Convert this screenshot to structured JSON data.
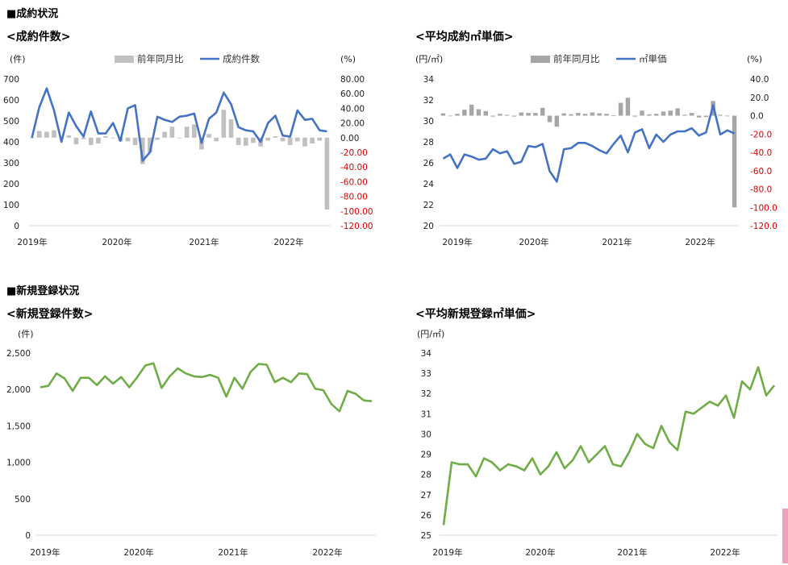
{
  "sections": {
    "contracts": "■成約状況",
    "registrations": "■新規登録状況"
  },
  "chart_data": [
    {
      "type": "bar+line",
      "title": "<成約件数>",
      "y_left_unit": "(件)",
      "y_right_unit": "(%)",
      "y_left_ticks": [
        "700",
        "600",
        "500",
        "400",
        "300",
        "200",
        "100",
        "0"
      ],
      "y_right_ticks": [
        "80.00",
        "60.00",
        "40.00",
        "20.00",
        "0.00",
        "-20.00",
        "-40.00",
        "-60.00",
        "-80.00",
        "-100.00",
        "-120.00"
      ],
      "ylim_left": [
        0,
        700
      ],
      "ylim_right": [
        -120,
        80
      ],
      "x_labels": [
        "2019年",
        "2020年",
        "2021年",
        "2022年"
      ],
      "legend": [
        "前年同月比",
        "成約件数"
      ],
      "bar_color": "#c0c0c0",
      "line_color": "#4472c4",
      "series": [
        {
          "name": "成約件数",
          "values": [
            420,
            565,
            655,
            550,
            400,
            540,
            475,
            425,
            545,
            440,
            440,
            490,
            405,
            560,
            575,
            310,
            350,
            520,
            505,
            495,
            520,
            525,
            535,
            395,
            510,
            540,
            635,
            580,
            470,
            455,
            450,
            400,
            490,
            525,
            430,
            425,
            550,
            505,
            510,
            455,
            450
          ]
        },
        {
          "name": "前年同月比",
          "values": [
            0,
            9,
            8,
            10,
            0,
            3,
            -9,
            -2,
            -10,
            -8,
            2,
            0,
            -5,
            -5,
            -10,
            -36,
            -20,
            -3,
            8,
            15,
            0,
            15,
            18,
            -16,
            5,
            -5,
            38,
            25,
            -10,
            -11,
            -7,
            -12,
            -4,
            2,
            -5,
            -10,
            -5,
            -12,
            -8,
            -4,
            -98
          ]
        }
      ]
    },
    {
      "type": "bar+line",
      "title": "<平均成約㎡単価>",
      "y_left_unit": "(円/㎡)",
      "y_right_unit": "(%)",
      "y_left_ticks": [
        "34",
        "32",
        "30",
        "28",
        "26",
        "24",
        "22",
        "20"
      ],
      "y_right_ticks": [
        "40.0",
        "20.0",
        "0.0",
        "-20.0",
        "-40.0",
        "-60.0",
        "-80.0",
        "-100.0",
        "-120.0"
      ],
      "ylim_left": [
        20,
        34
      ],
      "ylim_right": [
        -120,
        40
      ],
      "x_labels": [
        "2019年",
        "2020年",
        "2021年",
        "2022年"
      ],
      "legend": [
        "前年同月比",
        "㎡単価"
      ],
      "bar_color": "#a6a6a6",
      "line_color": "#4472c4",
      "series": [
        {
          "name": "㎡単価",
          "values": [
            26.4,
            26.8,
            25.5,
            26.8,
            26.6,
            26.3,
            26.4,
            27.3,
            26.9,
            27.1,
            25.9,
            26.1,
            27.6,
            27.5,
            27.8,
            25.2,
            24.2,
            27.3,
            27.4,
            27.9,
            27.9,
            27.6,
            27.2,
            26.9,
            27.8,
            28.6,
            27.0,
            28.9,
            29.2,
            27.4,
            28.7,
            28.0,
            28.7,
            29.0,
            29.0,
            29.3,
            28.6,
            28.9,
            31.5,
            28.7,
            29.1,
            28.8
          ]
        },
        {
          "name": "前年同月比",
          "values": [
            2.5,
            -0.5,
            2.0,
            6.5,
            12.0,
            7.0,
            5.0,
            -1.0,
            2.0,
            1.0,
            -1.0,
            3.5,
            3.0,
            3.0,
            8.5,
            -7.0,
            -12.0,
            2.5,
            1.5,
            3.0,
            2.0,
            3.5,
            2.5,
            2.0,
            0.5,
            14.0,
            19.5,
            -1.0,
            5.5,
            1.5,
            2.0,
            4.5,
            5.5,
            8.0,
            1.0,
            3.0,
            -2.0,
            -1.5,
            16.0,
            1.0,
            0.0,
            -100.0
          ]
        }
      ]
    },
    {
      "type": "line",
      "title": "<新規登録件数>",
      "y_unit": "(件)",
      "y_ticks": [
        "2,500",
        "2,000",
        "1,500",
        "1,000",
        "500",
        "0"
      ],
      "ylim": [
        0,
        2500
      ],
      "x_labels": [
        "2019年",
        "2020年",
        "2021年",
        "2022年"
      ],
      "line_color": "#70ad47",
      "series": [
        {
          "name": "",
          "values": [
            2030,
            2050,
            2220,
            2150,
            1980,
            2160,
            2160,
            2060,
            2180,
            2080,
            2170,
            2030,
            2170,
            2330,
            2360,
            2020,
            2180,
            2290,
            2220,
            2180,
            2170,
            2200,
            2160,
            1900,
            2160,
            2010,
            2240,
            2350,
            2340,
            2100,
            2160,
            2100,
            2220,
            2210,
            2010,
            1990,
            1800,
            1700,
            1980,
            1940,
            1850,
            1840
          ]
        }
      ]
    },
    {
      "type": "line",
      "title": "<平均新規登録㎡単価>",
      "y_unit": "(円/㎡)",
      "y_ticks": [
        "34",
        "33",
        "32",
        "31",
        "30",
        "29",
        "28",
        "27",
        "26",
        "25"
      ],
      "ylim": [
        25,
        34
      ],
      "x_labels": [
        "2019年",
        "2020年",
        "2021年",
        "2022年"
      ],
      "line_color": "#70ad47",
      "series": [
        {
          "name": "",
          "values": [
            25.5,
            28.6,
            28.5,
            28.5,
            27.9,
            28.8,
            28.6,
            28.2,
            28.5,
            28.4,
            28.2,
            28.8,
            28.0,
            28.4,
            29.1,
            28.3,
            28.7,
            29.4,
            28.6,
            29.0,
            29.4,
            28.5,
            28.4,
            29.1,
            30.0,
            29.5,
            29.3,
            30.4,
            29.6,
            29.2,
            31.1,
            31.0,
            31.3,
            31.6,
            31.4,
            31.9,
            30.8,
            32.6,
            32.2,
            33.3,
            31.9,
            32.4
          ]
        }
      ]
    }
  ]
}
